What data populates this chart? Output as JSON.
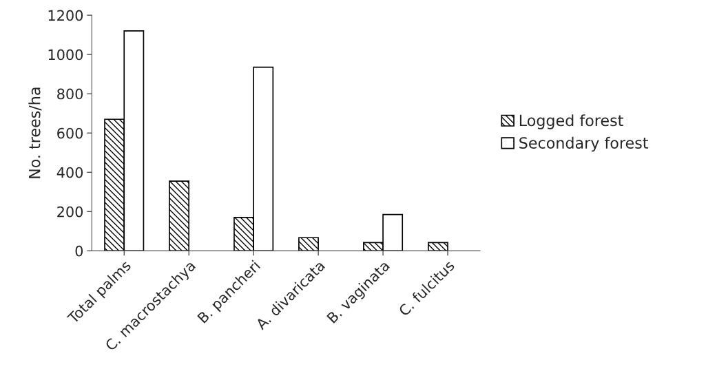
{
  "chart_data": {
    "type": "bar",
    "ylabel": "No. trees/ha",
    "categories": [
      "Total palms",
      "C. macrostachya",
      "B. pancheri",
      "A. divaricata",
      "B. vaginata",
      "C. fulcitus"
    ],
    "series": [
      {
        "name": "Logged forest",
        "color": "#000000",
        "values": [
          670,
          355,
          170,
          67,
          42,
          42
        ]
      },
      {
        "name": "Secondary forest",
        "color": "#ffffff",
        "values": [
          1120,
          null,
          935,
          null,
          185,
          null
        ]
      }
    ],
    "ylim": [
      0,
      1200
    ],
    "yticks": [
      0,
      200,
      400,
      600,
      800,
      1000,
      1200
    ],
    "grid": false,
    "legend": "right"
  }
}
